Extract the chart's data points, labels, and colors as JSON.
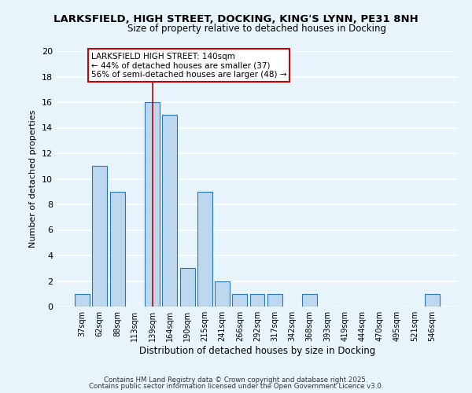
{
  "title_line1": "LARKSFIELD, HIGH STREET, DOCKING, KING'S LYNN, PE31 8NH",
  "title_line2": "Size of property relative to detached houses in Docking",
  "xlabel": "Distribution of detached houses by size in Docking",
  "ylabel": "Number of detached properties",
  "bar_labels": [
    "37sqm",
    "62sqm",
    "88sqm",
    "113sqm",
    "139sqm",
    "164sqm",
    "190sqm",
    "215sqm",
    "241sqm",
    "266sqm",
    "292sqm",
    "317sqm",
    "342sqm",
    "368sqm",
    "393sqm",
    "419sqm",
    "444sqm",
    "470sqm",
    "495sqm",
    "521sqm",
    "546sqm"
  ],
  "bar_values": [
    1,
    11,
    9,
    0,
    16,
    15,
    3,
    9,
    2,
    1,
    1,
    1,
    0,
    1,
    0,
    0,
    0,
    0,
    0,
    0,
    1
  ],
  "bar_color": "#bdd7ee",
  "bar_edge_color": "#2e75b6",
  "highlight_bar_edge": "#cc0000",
  "background_color": "#e8f4fc",
  "grid_color": "#ffffff",
  "annotation_text": "LARKSFIELD HIGH STREET: 140sqm\n← 44% of detached houses are smaller (37)\n56% of semi-detached houses are larger (48) →",
  "annotation_box_color": "#ffffff",
  "annotation_box_edge": "#cc0000",
  "ylim": [
    0,
    20
  ],
  "yticks": [
    0,
    2,
    4,
    6,
    8,
    10,
    12,
    14,
    16,
    18,
    20
  ],
  "property_bar_index": 4,
  "footer_line1": "Contains HM Land Registry data © Crown copyright and database right 2025.",
  "footer_line2": "Contains public sector information licensed under the Open Government Licence v3.0."
}
